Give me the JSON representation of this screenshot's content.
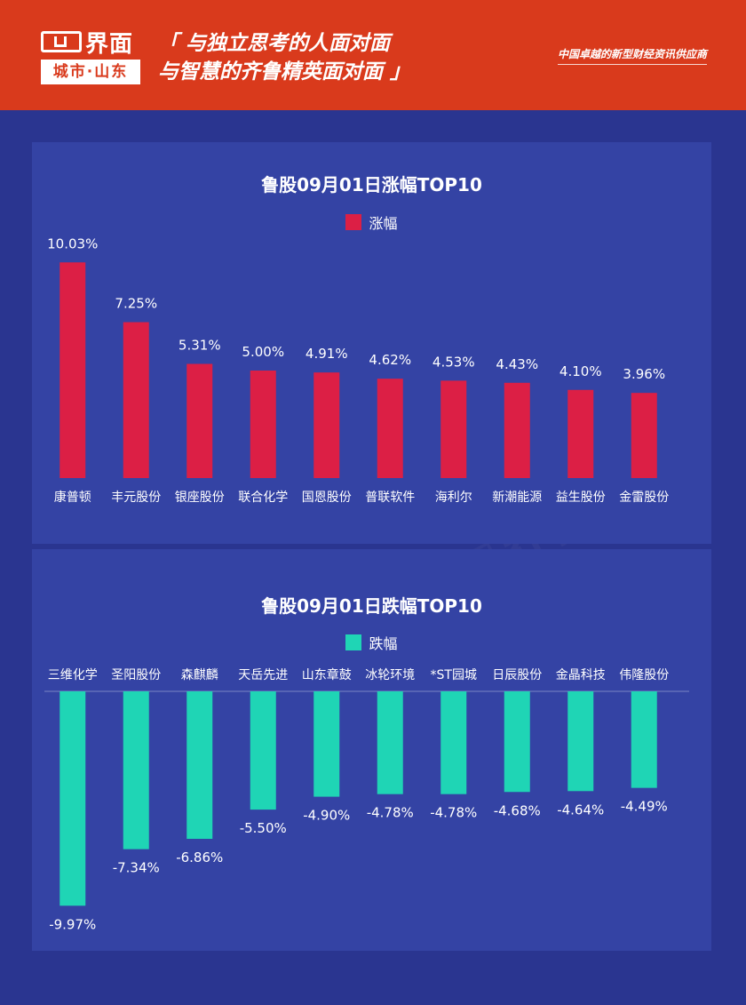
{
  "header": {
    "logo_name": "界面",
    "logo_sub": "城市·山东",
    "slogan_line1": "「 与独立思考的人面对面",
    "slogan_line2": "与智慧的齐鲁精英面对面 」",
    "tagline": "中国卓越的新型财经资讯供应商"
  },
  "colors": {
    "header_bg": "#d93a1c",
    "page_bg": "#2a3590",
    "panel_bg": "#3443a4",
    "gain_bar": "#dc1f45",
    "loss_bar": "#1fd5b5"
  },
  "chart_data": [
    {
      "type": "bar",
      "title": "鲁股09月01日涨幅TOP10",
      "legend": "涨幅",
      "categories": [
        "康普顿",
        "丰元股份",
        "银座股份",
        "联合化学",
        "国恩股份",
        "普联软件",
        "海利尔",
        "新潮能源",
        "益生股份",
        "金雷股份"
      ],
      "values": [
        10.03,
        7.25,
        5.31,
        5.0,
        4.91,
        4.62,
        4.53,
        4.43,
        4.1,
        3.96
      ],
      "labels": [
        "10.03%",
        "7.25%",
        "5.31%",
        "5.00%",
        "4.91%",
        "4.62%",
        "4.53%",
        "4.43%",
        "4.10%",
        "3.96%"
      ],
      "color": "#dc1f45"
    },
    {
      "type": "bar",
      "title": "鲁股09月01日跌幅TOP10",
      "legend": "跌幅",
      "categories": [
        "三维化学",
        "圣阳股份",
        "森麒麟",
        "天岳先进",
        "山东章鼓",
        "冰轮环境",
        "*ST园城",
        "日辰股份",
        "金晶科技",
        "伟隆股份"
      ],
      "values": [
        -9.97,
        -7.34,
        -6.86,
        -5.5,
        -4.9,
        -4.78,
        -4.78,
        -4.68,
        -4.64,
        -4.49
      ],
      "labels": [
        "-9.97%",
        "-7.34%",
        "-6.86%",
        "-5.50%",
        "-4.90%",
        "-4.78%",
        "-4.78%",
        "-4.68%",
        "-4.64%",
        "-4.49%"
      ],
      "color": "#1fd5b5"
    }
  ]
}
